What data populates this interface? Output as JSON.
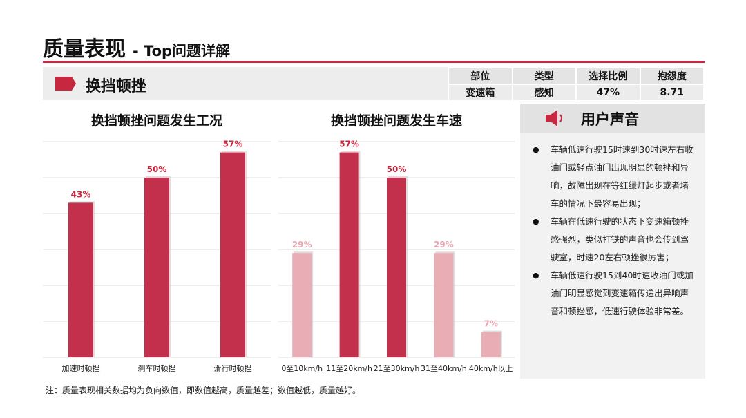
{
  "header": {
    "title": "质量表现",
    "subtitle": "- Top问题详解"
  },
  "topic": {
    "name": "换挡顿挫",
    "flag_icon": "flag-icon"
  },
  "info_table": {
    "headers": [
      "部位",
      "类型",
      "选择比例",
      "抱怨度"
    ],
    "values": [
      "变速箱",
      "感知",
      "47%",
      "8.71"
    ]
  },
  "colors": {
    "accent": "#c8283f",
    "bar_dark": "#c3304b",
    "bar_light": "#e9adb6",
    "label_light": "#e8a7b2"
  },
  "chart_data": [
    {
      "type": "bar",
      "title": "换挡顿挫问题发生工况",
      "categories": [
        "加速时顿挫",
        "刹车时顿挫",
        "滑行时顿挫"
      ],
      "values": [
        43,
        50,
        57
      ],
      "value_labels": [
        "43%",
        "50%",
        "57%"
      ],
      "highlight": [
        true,
        true,
        true
      ],
      "ylim": [
        0,
        60
      ],
      "grid": true,
      "xlabel": "",
      "ylabel": ""
    },
    {
      "type": "bar",
      "title": "换挡顿挫问题发生车速",
      "categories": [
        "0至10km/h",
        "11至20km/h",
        "21至30km/h",
        "31至40km/h",
        "40km/h以上"
      ],
      "values": [
        29,
        57,
        50,
        29,
        7
      ],
      "value_labels": [
        "29%",
        "57%",
        "50%",
        "29%",
        "7%"
      ],
      "highlight": [
        false,
        true,
        true,
        false,
        false
      ],
      "ylim": [
        0,
        60
      ],
      "grid": true,
      "xlabel": "",
      "ylabel": ""
    }
  ],
  "voice": {
    "title": "用户声音",
    "icon": "speaker-icon",
    "items": [
      "车辆低速行驶15时速到30时速左右收油门或轻点油门出现明显的顿挫和异响，故障出现在等红绿灯起步或者堵车的情况下最容易出现；",
      "车辆在低速行驶的状态下变速箱顿挫感强烈，类似打铁的声音也会传到驾驶室，时速20左右顿挫很厉害；",
      "车辆低速行驶15到40时速收油门或加油门明显感觉到变速箱传递出异响声音和顿挫感，低速行驶体验非常差。"
    ]
  },
  "footnote": "注：质量表现相关数据均为负向数值，即数值越高，质量越差；数值越低，质量越好。"
}
